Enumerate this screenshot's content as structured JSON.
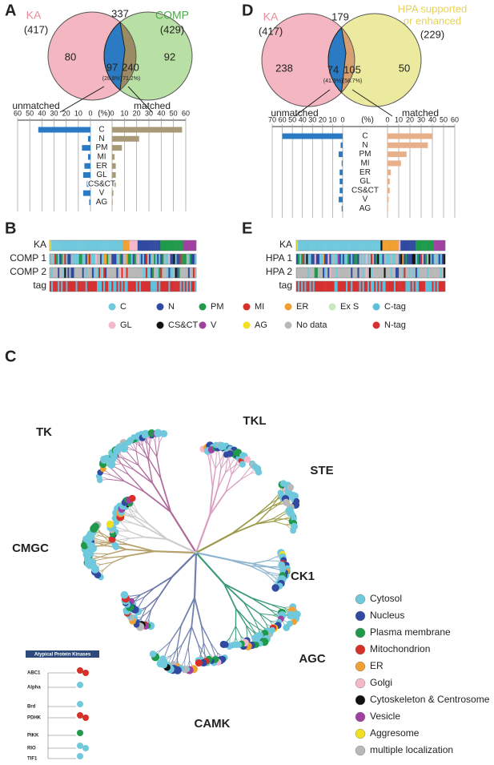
{
  "panels": [
    "A",
    "B",
    "C",
    "D",
    "E"
  ],
  "venn_a": {
    "left": "KA",
    "left_n": "(417)",
    "outside": "337",
    "right": "COMP",
    "right_n": "(429)",
    "left_only": "80",
    "blue": "97",
    "blue_pct": "(28.8%)",
    "brown": "240",
    "brown_pct": "(71.2%)",
    "right_only": "92"
  },
  "venn_d": {
    "left": "KA",
    "left_n": "(417)",
    "outside": "179",
    "right": [
      "HPA supported",
      "or enhanced"
    ],
    "right_n": "(229)",
    "left_only": "238",
    "blue": "74",
    "blue_pct": "(41.3%)",
    "brown": "105",
    "brown_pct": "(58.7%)",
    "right_only": "50"
  },
  "chart_data": [
    {
      "type": "bar",
      "orientation": "horizontal",
      "x_label": "(%)",
      "categories": [
        "C",
        "N",
        "PM",
        "MI",
        "ER",
        "GL",
        "CS&CT",
        "V",
        "AG"
      ],
      "series": [
        {
          "name": "unmatched",
          "color": "#2b7bc4",
          "values": [
            43,
            2,
            7,
            2,
            5,
            6,
            3,
            6,
            1
          ],
          "xlim": [
            0,
            60
          ],
          "xticks": [
            60,
            50,
            40,
            30,
            20,
            10,
            0
          ]
        },
        {
          "name": "matched",
          "color": "#a89a78",
          "values": [
            57,
            22,
            8,
            2,
            3,
            3,
            3,
            1,
            0.5
          ],
          "xlim": [
            0,
            60
          ],
          "xticks": [
            0,
            10,
            20,
            30,
            40,
            50,
            60
          ]
        }
      ]
    },
    {
      "type": "bar",
      "orientation": "horizontal",
      "x_label": "(%)",
      "categories": [
        "C",
        "N",
        "PM",
        "MI",
        "ER",
        "GL",
        "CS&CT",
        "V",
        "AG"
      ],
      "series": [
        {
          "name": "unmatched",
          "color": "#2b7bc4",
          "values": [
            60,
            2,
            4,
            1,
            3,
            3,
            3,
            4,
            1
          ],
          "xlim": [
            0,
            70
          ],
          "xticks": [
            70,
            60,
            50,
            40,
            30,
            20,
            10,
            0
          ]
        },
        {
          "name": "matched",
          "color": "#e8b08a",
          "values": [
            40,
            36,
            17,
            12,
            3,
            2,
            2,
            1,
            0.5
          ],
          "xlim": [
            0,
            60
          ],
          "xticks": [
            0,
            10,
            20,
            30,
            40,
            50,
            60
          ]
        }
      ]
    }
  ],
  "strips_b": {
    "rows": [
      "KA",
      "COMP 1",
      "COMP 2",
      "tag"
    ]
  },
  "strips_e": {
    "rows": [
      "KA",
      "HPA 1",
      "HPA 2",
      "tag"
    ]
  },
  "strip_legend": [
    {
      "label": "C",
      "color": "#6fc8dc"
    },
    {
      "label": "N",
      "color": "#2f4aa0"
    },
    {
      "label": "PM",
      "color": "#1f9a4a"
    },
    {
      "label": "MI",
      "color": "#d6302a"
    },
    {
      "label": "ER",
      "color": "#f0a030"
    },
    {
      "label": "Ex S",
      "color": "#c8e6c0"
    },
    {
      "label": "C-tag",
      "color": "#5cc0dc"
    },
    {
      "label": "GL",
      "color": "#f4b8c8"
    },
    {
      "label": "CS&CT",
      "color": "#111111"
    },
    {
      "label": "V",
      "color": "#a040a0"
    },
    {
      "label": "AG",
      "color": "#f0e020"
    },
    {
      "label": "No data",
      "color": "#b8b8b8"
    },
    {
      "label": "N-tag",
      "color": "#d63030"
    }
  ],
  "tree": {
    "groups": [
      "TK",
      "TKL",
      "STE",
      "CMGC",
      "CK1",
      "AGC",
      "CAMK"
    ],
    "legend": [
      {
        "label": "Cytosol",
        "color": "#6fc8dc"
      },
      {
        "label": "Nucleus",
        "color": "#2f4aa0"
      },
      {
        "label": "Plasma membrane",
        "color": "#1f9a4a"
      },
      {
        "label": "Mitochondrion",
        "color": "#d6302a"
      },
      {
        "label": "ER",
        "color": "#f0a030"
      },
      {
        "label": "Golgi",
        "color": "#f4b8c8"
      },
      {
        "label": "Cytoskeleton & Centrosome",
        "color": "#111111"
      },
      {
        "label": "Vesicle",
        "color": "#a040a0"
      },
      {
        "label": "Aggresome",
        "color": "#f0e020"
      },
      {
        "label": "multiple localization",
        "color": "#b8b8b8"
      }
    ],
    "inset": {
      "title": "Atypical Protein Kinases",
      "labels": [
        "ABC1",
        "Alpha",
        "Brd",
        "PDHK",
        "PIKK",
        "RIO",
        "TIF1"
      ]
    }
  }
}
